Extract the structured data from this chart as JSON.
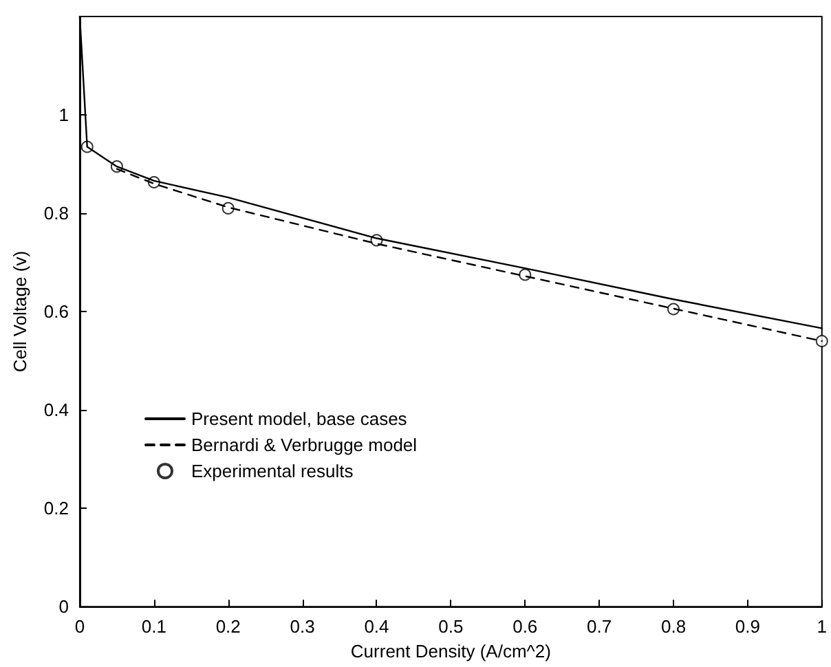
{
  "chart_data": {
    "type": "line",
    "xlabel": "Current Density (A/cm^2)",
    "ylabel": "Cell Voltage (v)",
    "xlim": [
      0,
      1
    ],
    "xticks": [
      0,
      0.1,
      0.2,
      0.3,
      0.4,
      0.5,
      0.6,
      0.7,
      0.8,
      0.9,
      1
    ],
    "ylim": [
      0,
      1.2
    ],
    "yticks": [
      0,
      0.2,
      0.4,
      0.6,
      0.8,
      1
    ],
    "grid": false,
    "legend": "left",
    "series": [
      {
        "name": "Present model, base cases",
        "line_style": "solid",
        "marker": "none",
        "color": "#000000",
        "x": [
          0,
          0.01,
          0.05,
          0.1,
          0.2,
          0.4,
          0.6,
          0.8,
          1.0
        ],
        "values": [
          1.2,
          0.935,
          0.895,
          0.866,
          0.832,
          0.749,
          0.688,
          0.625,
          0.566
        ]
      },
      {
        "name": "Bernardi & Verbrugge model",
        "line_style": "dashed",
        "marker": "none",
        "color": "#000000",
        "x": [
          0.05,
          0.1,
          0.2,
          0.4,
          0.6,
          0.8,
          1.0
        ],
        "values": [
          0.89,
          0.86,
          0.812,
          0.738,
          0.672,
          0.606,
          0.54
        ]
      },
      {
        "name": "Experimental results",
        "type": "scatter",
        "marker": "circle",
        "color": "#000000",
        "x": [
          0.01,
          0.05,
          0.1,
          0.2,
          0.4,
          0.6,
          0.8,
          1.0
        ],
        "values": [
          0.935,
          0.895,
          0.863,
          0.81,
          0.745,
          0.675,
          0.605,
          0.54
        ]
      }
    ]
  }
}
